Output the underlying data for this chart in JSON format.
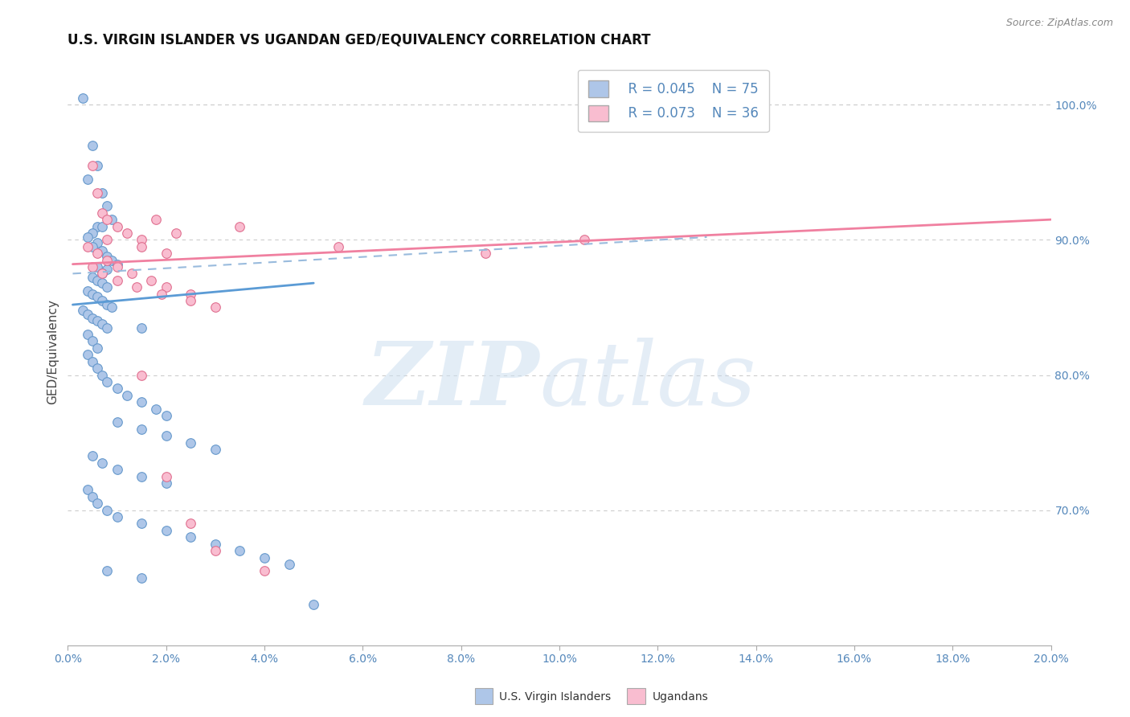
{
  "title": "U.S. VIRGIN ISLANDER VS UGANDAN GED/EQUIVALENCY CORRELATION CHART",
  "source": "Source: ZipAtlas.com",
  "ylabel": "GED/Equivalency",
  "xlim": [
    0.0,
    20.0
  ],
  "ylim": [
    60.0,
    103.5
  ],
  "right_yticks": [
    70.0,
    80.0,
    90.0,
    100.0
  ],
  "legend_r1": "R = 0.045",
  "legend_n1": "N = 75",
  "legend_r2": "R = 0.073",
  "legend_n2": "N = 36",
  "blue_color": "#aec6e8",
  "blue_edge": "#6699cc",
  "pink_color": "#f9bdd0",
  "pink_edge": "#e07090",
  "blue_line_color": "#5b9bd5",
  "pink_line_color": "#f080a0",
  "dash_line_color": "#99bbdd",
  "blue_scatter_x": [
    0.3,
    0.5,
    0.4,
    0.6,
    0.7,
    0.8,
    0.9,
    0.6,
    0.7,
    0.5,
    0.4,
    0.6,
    0.5,
    0.7,
    0.8,
    0.9,
    1.0,
    0.6,
    0.8,
    0.7,
    0.5,
    0.6,
    0.7,
    0.8,
    0.4,
    0.5,
    0.6,
    0.7,
    0.8,
    0.9,
    0.3,
    0.4,
    0.5,
    0.6,
    0.7,
    0.8,
    0.4,
    0.5,
    0.6,
    1.5,
    0.4,
    0.5,
    0.6,
    0.7,
    0.8,
    1.0,
    1.2,
    1.5,
    1.8,
    2.0,
    1.0,
    1.5,
    2.0,
    2.5,
    3.0,
    0.5,
    0.7,
    1.0,
    1.5,
    2.0,
    0.4,
    0.5,
    0.6,
    0.8,
    1.0,
    1.5,
    2.0,
    2.5,
    3.0,
    3.5,
    4.0,
    4.5,
    0.8,
    1.5,
    5.0
  ],
  "blue_scatter_y": [
    100.5,
    97.0,
    94.5,
    95.5,
    93.5,
    92.5,
    91.5,
    91.0,
    91.0,
    90.5,
    90.2,
    89.8,
    89.5,
    89.2,
    88.8,
    88.5,
    88.2,
    88.0,
    87.8,
    87.5,
    87.2,
    87.0,
    86.8,
    86.5,
    86.2,
    86.0,
    85.8,
    85.5,
    85.2,
    85.0,
    84.8,
    84.5,
    84.2,
    84.0,
    83.8,
    83.5,
    83.0,
    82.5,
    82.0,
    83.5,
    81.5,
    81.0,
    80.5,
    80.0,
    79.5,
    79.0,
    78.5,
    78.0,
    77.5,
    77.0,
    76.5,
    76.0,
    75.5,
    75.0,
    74.5,
    74.0,
    73.5,
    73.0,
    72.5,
    72.0,
    71.5,
    71.0,
    70.5,
    70.0,
    69.5,
    69.0,
    68.5,
    68.0,
    67.5,
    67.0,
    66.5,
    66.0,
    65.5,
    65.0,
    63.0
  ],
  "pink_scatter_x": [
    0.5,
    0.6,
    0.7,
    0.8,
    1.0,
    1.2,
    1.5,
    0.4,
    0.6,
    0.8,
    1.0,
    1.3,
    1.7,
    2.0,
    2.5,
    0.5,
    0.7,
    1.0,
    1.4,
    1.9,
    2.5,
    3.0,
    1.8,
    2.2,
    0.8,
    1.5,
    2.0,
    3.5,
    5.5,
    8.5,
    10.5,
    1.5,
    2.0,
    2.5,
    3.0,
    4.0
  ],
  "pink_scatter_y": [
    95.5,
    93.5,
    92.0,
    91.5,
    91.0,
    90.5,
    90.0,
    89.5,
    89.0,
    88.5,
    88.0,
    87.5,
    87.0,
    86.5,
    86.0,
    88.0,
    87.5,
    87.0,
    86.5,
    86.0,
    85.5,
    85.0,
    91.5,
    90.5,
    90.0,
    89.5,
    89.0,
    91.0,
    89.5,
    89.0,
    90.0,
    80.0,
    72.5,
    69.0,
    67.0,
    65.5
  ],
  "blue_trend_x": [
    0.1,
    5.0
  ],
  "blue_trend_y": [
    85.2,
    86.8
  ],
  "pink_trend_x": [
    0.1,
    20.0
  ],
  "pink_trend_y": [
    88.2,
    91.5
  ],
  "dash_trend_x": [
    0.1,
    13.0
  ],
  "dash_trend_y": [
    87.5,
    90.2
  ],
  "xtick_step": 2
}
